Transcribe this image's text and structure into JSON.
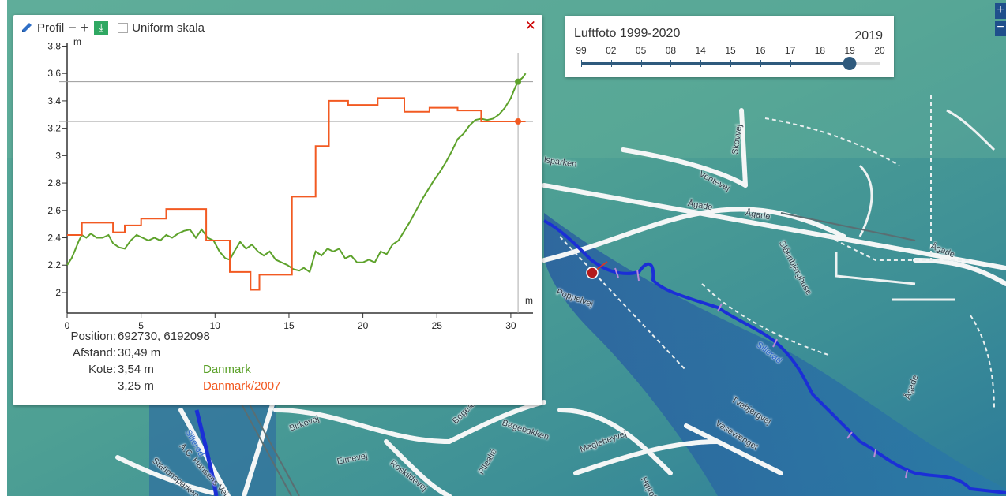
{
  "profile": {
    "title": "Profil",
    "zoom_out": "−",
    "zoom_in": "+",
    "download_icon": "⤓",
    "uniform_label": "Uniform skala",
    "close": "✕",
    "y_unit": "m",
    "x_unit": "m",
    "info": {
      "position_label": "Position:",
      "position_value": "692730, 6192098",
      "distance_label": "Afstand:",
      "distance_value": "30,49 m",
      "elevation_label": "Kote:",
      "elevation_1": "3,54 m",
      "elevation_2": "3,25 m",
      "source_1": "Danmark",
      "source_2": "Danmark/2007"
    },
    "colors": {
      "danmark": "#5da22b",
      "danmark2007": "#f25a22"
    }
  },
  "chart_data": {
    "type": "line",
    "xlabel": "m",
    "ylabel": "m",
    "xlim": [
      0,
      31.5
    ],
    "ylim": [
      1.85,
      3.82
    ],
    "x_ticks": [
      0,
      5,
      10,
      15,
      20,
      25,
      30
    ],
    "y_ticks": [
      2,
      2.2,
      2.4,
      2.6,
      2.8,
      3,
      3.2,
      3.4,
      3.6,
      3.8
    ],
    "y_tick_labels": [
      "2",
      "2.2",
      "2.4",
      "2.6",
      "2.8",
      "3",
      "3.2",
      "3.4",
      "3.6",
      "3.8"
    ],
    "cursor_x": 30.49,
    "reference_lines": [
      3.54,
      3.25
    ],
    "series": [
      {
        "name": "Danmark",
        "color": "#5da22b",
        "x": [
          0,
          0.3,
          0.5,
          0.8,
          1.0,
          1.3,
          1.6,
          2.0,
          2.4,
          2.8,
          3.1,
          3.5,
          3.9,
          4.3,
          4.7,
          5.1,
          5.5,
          5.9,
          6.3,
          6.7,
          7.1,
          7.5,
          7.9,
          8.3,
          8.7,
          9.1,
          9.5,
          9.9,
          10.3,
          10.7,
          11.0,
          11.3,
          11.7,
          12.1,
          12.5,
          12.9,
          13.3,
          13.7,
          14.1,
          14.5,
          14.9,
          15.3,
          15.7,
          16.0,
          16.4,
          16.8,
          17.2,
          17.6,
          18.0,
          18.4,
          18.8,
          19.2,
          19.6,
          20.0,
          20.4,
          20.8,
          21.2,
          21.6,
          22.0,
          22.4,
          22.8,
          23.2,
          23.6,
          24.0,
          24.4,
          24.8,
          25.2,
          25.6,
          26.0,
          26.4,
          26.8,
          27.2,
          27.6,
          28.0,
          28.4,
          28.8,
          29.2,
          29.6,
          30.0,
          30.3,
          30.49,
          30.8,
          31.0
        ],
        "y": [
          2.2,
          2.25,
          2.3,
          2.38,
          2.42,
          2.4,
          2.43,
          2.4,
          2.4,
          2.42,
          2.36,
          2.33,
          2.32,
          2.38,
          2.42,
          2.4,
          2.38,
          2.4,
          2.38,
          2.42,
          2.4,
          2.43,
          2.45,
          2.46,
          2.4,
          2.46,
          2.4,
          2.38,
          2.3,
          2.25,
          2.24,
          2.3,
          2.37,
          2.32,
          2.35,
          2.3,
          2.27,
          2.3,
          2.24,
          2.22,
          2.2,
          2.17,
          2.16,
          2.18,
          2.15,
          2.3,
          2.27,
          2.32,
          2.3,
          2.32,
          2.25,
          2.27,
          2.22,
          2.22,
          2.24,
          2.22,
          2.3,
          2.28,
          2.35,
          2.38,
          2.45,
          2.52,
          2.6,
          2.68,
          2.75,
          2.82,
          2.88,
          2.95,
          3.03,
          3.12,
          3.16,
          3.22,
          3.26,
          3.27,
          3.26,
          3.27,
          3.3,
          3.35,
          3.42,
          3.5,
          3.54,
          3.57,
          3.6
        ]
      },
      {
        "name": "Danmark/2007",
        "color": "#f25a22",
        "x": [
          0,
          1.0,
          1.0,
          3.1,
          3.1,
          3.9,
          3.9,
          5.0,
          5.0,
          6.7,
          6.7,
          9.4,
          9.4,
          11.0,
          11.0,
          12.4,
          12.4,
          13.0,
          13.0,
          14.8,
          14.8,
          15.2,
          15.2,
          16.8,
          16.8,
          17.7,
          17.7,
          19.0,
          19.0,
          21.0,
          21.0,
          22.8,
          22.8,
          24.5,
          24.5,
          26.4,
          26.4,
          28.0,
          28.0,
          30.49,
          31.0
        ],
        "y": [
          2.42,
          2.42,
          2.51,
          2.51,
          2.44,
          2.44,
          2.49,
          2.49,
          2.54,
          2.54,
          2.61,
          2.61,
          2.38,
          2.38,
          2.15,
          2.15,
          2.02,
          2.02,
          2.13,
          2.13,
          2.13,
          2.13,
          2.7,
          2.7,
          3.07,
          3.07,
          3.4,
          3.4,
          3.37,
          3.37,
          3.42,
          3.42,
          3.32,
          3.32,
          3.35,
          3.35,
          3.33,
          3.33,
          3.25,
          3.25,
          3.25
        ]
      }
    ]
  },
  "timeline": {
    "title": "Luftfoto 1999-2020",
    "year": "2019",
    "ticks": [
      "99",
      "02",
      "05",
      "08",
      "14",
      "15",
      "16",
      "17",
      "18",
      "19",
      "20"
    ],
    "selected_index": 9
  },
  "map": {
    "zoom_in": "+",
    "zoom_out": "−",
    "labels": [
      "Ventevej",
      "Skovvej",
      "Ågade",
      "Ågade",
      "Ågade",
      "Slåenbjerghuse",
      "Poppelvej",
      "Sillerød",
      "Birkevej",
      "Bøgebakken",
      "Bøgeallé",
      "Pileallé",
      "Roskildevej",
      "Elmevej",
      "Tvebjergvej",
      "Vasevænget",
      "Magleheyvej",
      "Højtoft",
      "A.C. Hansens Vej",
      "Stationsparken",
      "Sillerød",
      "Ågade",
      "lsparken"
    ]
  }
}
